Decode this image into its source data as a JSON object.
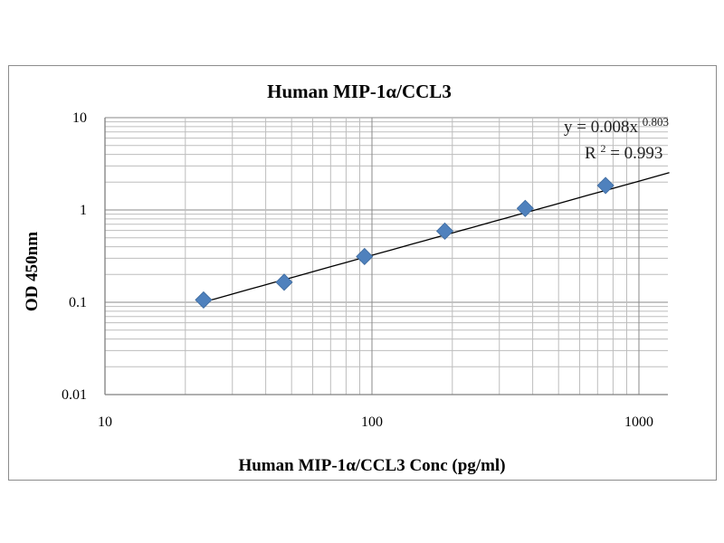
{
  "chart_data": {
    "type": "scatter",
    "title": "Human MIP-1α/CCL3",
    "xlabel": "Human MIP-1α/CCL3 Conc (pg/ml)",
    "ylabel": "OD 450nm",
    "x_scale": "log",
    "y_scale": "log",
    "xlim": [
      10,
      1300
    ],
    "ylim": [
      0.01,
      10
    ],
    "x_ticks": [
      "10",
      "100",
      "1000"
    ],
    "y_ticks": [
      "0.01",
      "0.1",
      "1",
      "10"
    ],
    "grid": true,
    "legend": "none",
    "marker": "diamond",
    "marker_color": "#4f81bd",
    "series": [
      {
        "x": [
          23.4,
          46.9,
          93.8,
          187.5,
          375,
          750
        ],
        "y": [
          0.106,
          0.165,
          0.313,
          0.59,
          1.04,
          1.84
        ]
      }
    ],
    "trendline": {
      "type": "power",
      "a": 0.008,
      "b": 0.803,
      "x_range": [
        23.4,
        1300
      ],
      "equation_base": "y = 0.008x",
      "equation_exponent": "0.803",
      "r2_base": "R",
      "r2_sup": "2",
      "r2_value": " = 0.993"
    }
  }
}
